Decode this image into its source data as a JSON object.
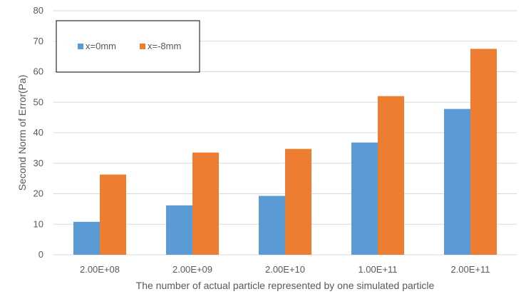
{
  "chart_data": {
    "type": "bar",
    "title": "",
    "xlabel": "The  number of actual particle represented by one simulated particle",
    "ylabel": "Second Norm of Error(Pa)",
    "categories": [
      "2.00E+08",
      "2.00E+09",
      "2.00E+10",
      "1.00E+11",
      "2.00E+11"
    ],
    "series": [
      {
        "name": "x=0mm",
        "color": "#5b9bd5",
        "values": [
          10.8,
          16.2,
          19.3,
          36.8,
          47.8
        ]
      },
      {
        "name": "x=-8mm",
        "color": "#ed7d31",
        "values": [
          26.3,
          33.5,
          34.7,
          52.0,
          67.5
        ]
      }
    ],
    "ylim": [
      0,
      80
    ],
    "yticks": [
      0,
      10,
      20,
      30,
      40,
      50,
      60,
      70,
      80
    ],
    "grid": true,
    "legend_position": "top-left"
  }
}
